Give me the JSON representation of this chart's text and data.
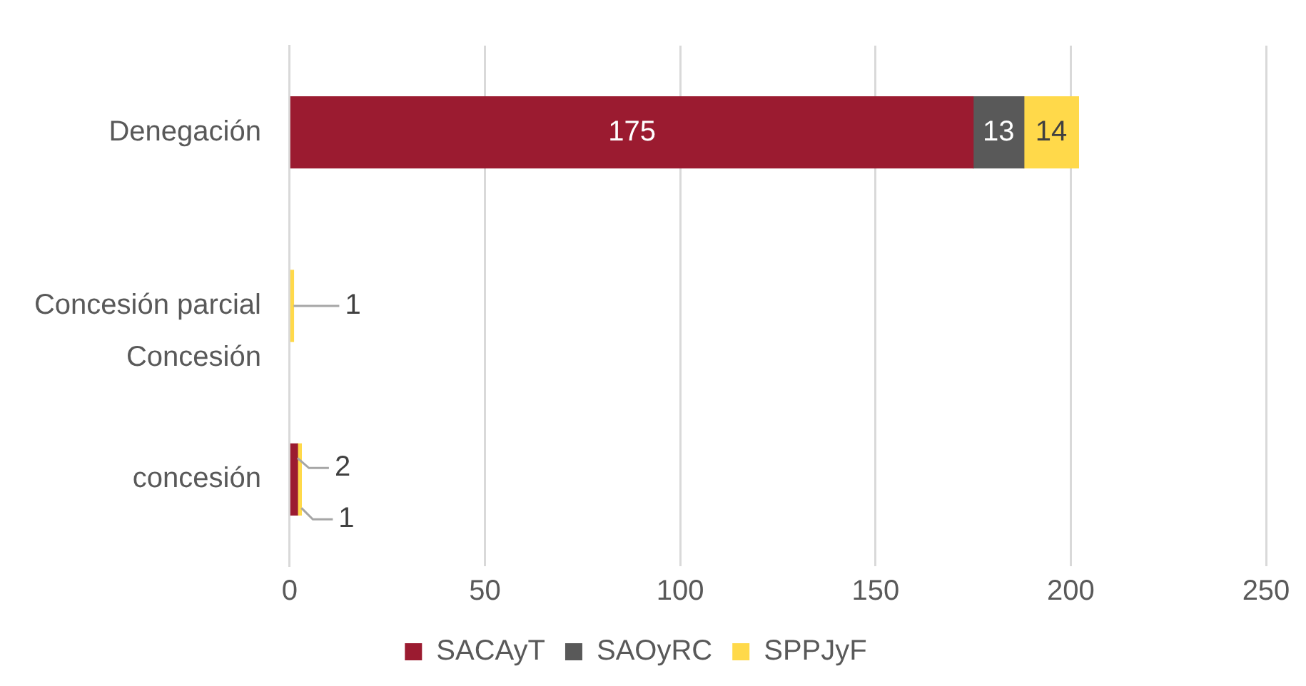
{
  "chart_data": {
    "type": "bar",
    "orientation": "horizontal",
    "stacked": true,
    "categories": [
      "Denegación",
      "Concesión parcial",
      "concesión"
    ],
    "series": [
      {
        "name": "SACAyT",
        "color": "#9b1b30",
        "values": [
          175,
          null,
          2
        ]
      },
      {
        "name": "SAOyRC",
        "color": "#595959",
        "values": [
          13,
          null,
          null
        ]
      },
      {
        "name": "SPPJyF",
        "color": "#ffd94a",
        "values": [
          14,
          1,
          1
        ]
      }
    ],
    "xlim": [
      0,
      250
    ],
    "xticks": [
      0,
      50,
      100,
      150,
      200,
      250
    ],
    "grid": "x",
    "legend": "bottom",
    "data_labels": true,
    "annotations": [
      "Concesión"
    ]
  }
}
